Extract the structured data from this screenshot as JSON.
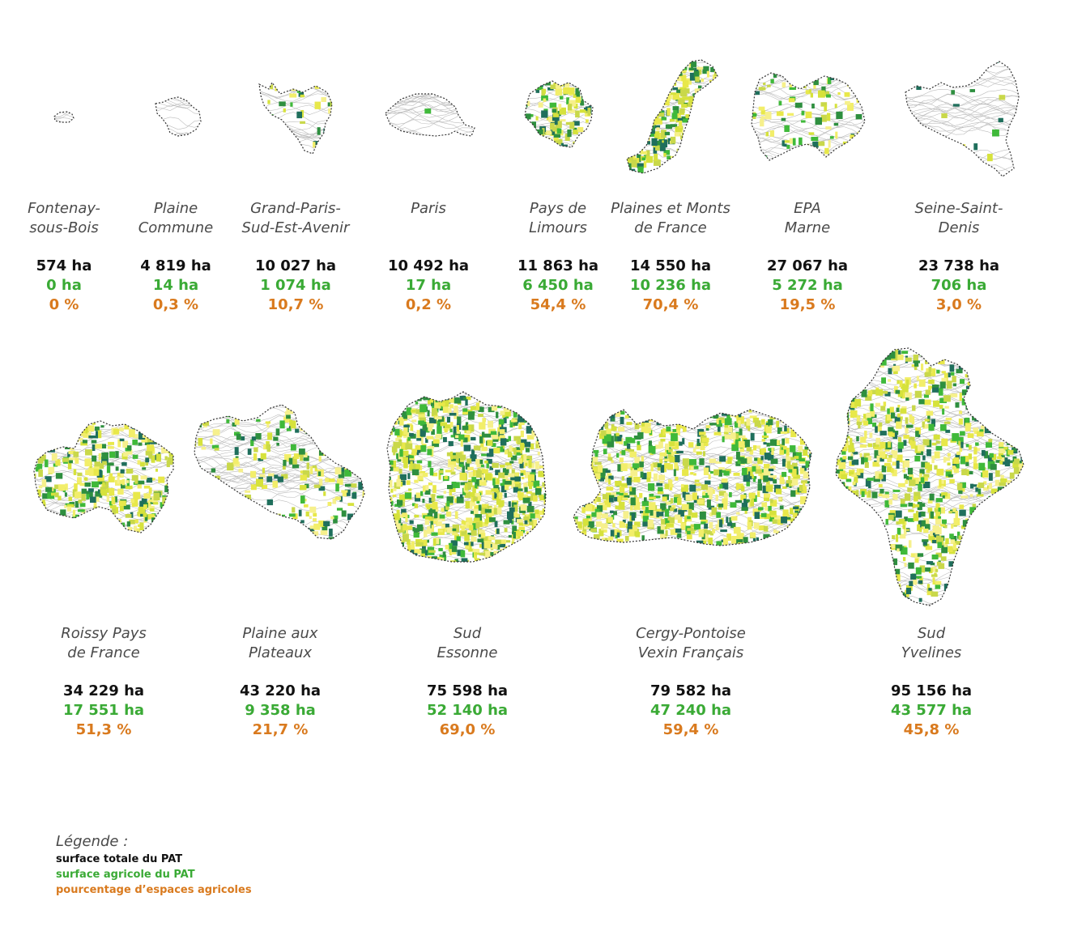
{
  "colors": {
    "total": "#111111",
    "agricultural": "#3aaa35",
    "percentage": "#d97a1e",
    "outline": "#333333",
    "relief": "#bdbdbd"
  },
  "territories": [
    {
      "name_line1": "Fontenay-",
      "name_line2": "sous-Bois",
      "total": "574 ha",
      "agri": "0 ha",
      "pct": "0 %",
      "agri_share": 0.0
    },
    {
      "name_line1": "Plaine",
      "name_line2": "Commune",
      "total": "4 819 ha",
      "agri": "14 ha",
      "pct": "0,3 %",
      "agri_share": 0.003
    },
    {
      "name_line1": "Grand-Paris-",
      "name_line2": "Sud-Est-Avenir",
      "total": "10 027 ha",
      "agri": "1 074 ha",
      "pct": "10,7 %",
      "agri_share": 0.107
    },
    {
      "name_line1": "Paris",
      "name_line2": "",
      "total": "10 492 ha",
      "agri": "17 ha",
      "pct": "0,2 %",
      "agri_share": 0.002
    },
    {
      "name_line1": "Pays de",
      "name_line2": "Limours",
      "total": "11 863 ha",
      "agri": "6 450 ha",
      "pct": "54,4 %",
      "agri_share": 0.544
    },
    {
      "name_line1": "Plaines et Monts",
      "name_line2": "de France",
      "total": "14 550 ha",
      "agri": "10 236 ha",
      "pct": "70,4 %",
      "agri_share": 0.704
    },
    {
      "name_line1": "EPA",
      "name_line2": "Marne",
      "total": "27 067 ha",
      "agri": "5 272 ha",
      "pct": "19,5 %",
      "agri_share": 0.195
    },
    {
      "name_line1": "Seine-Saint-",
      "name_line2": "Denis",
      "total": "23 738 ha",
      "agri": "706 ha",
      "pct": "3,0 %",
      "agri_share": 0.03
    },
    {
      "name_line1": "Roissy Pays",
      "name_line2": "de France",
      "total": "34 229 ha",
      "agri": "17 551 ha",
      "pct": "51,3 %",
      "agri_share": 0.513
    },
    {
      "name_line1": "Plaine aux",
      "name_line2": "Plateaux",
      "total": "43 220 ha",
      "agri": "9 358 ha",
      "pct": "21,7 %",
      "agri_share": 0.217
    },
    {
      "name_line1": "Sud",
      "name_line2": "Essonne",
      "total": "75 598 ha",
      "agri": "52 140 ha",
      "pct": "69,0 %",
      "agri_share": 0.69
    },
    {
      "name_line1": "Cergy-Pontoise",
      "name_line2": "Vexin Français",
      "total": "79 582 ha",
      "agri": "47 240 ha",
      "pct": "59,4 %",
      "agri_share": 0.594
    },
    {
      "name_line1": "Sud",
      "name_line2": "Yvelines",
      "total": "95 156 ha",
      "agri": "43 577 ha",
      "pct": "45,8 %",
      "agri_share": 0.458
    }
  ],
  "legend": {
    "title": "Légende :",
    "total_label": "surface totale du PAT",
    "agri_label": "surface agricole du PAT",
    "pct_label": "pourcentage d’espaces agricoles"
  }
}
